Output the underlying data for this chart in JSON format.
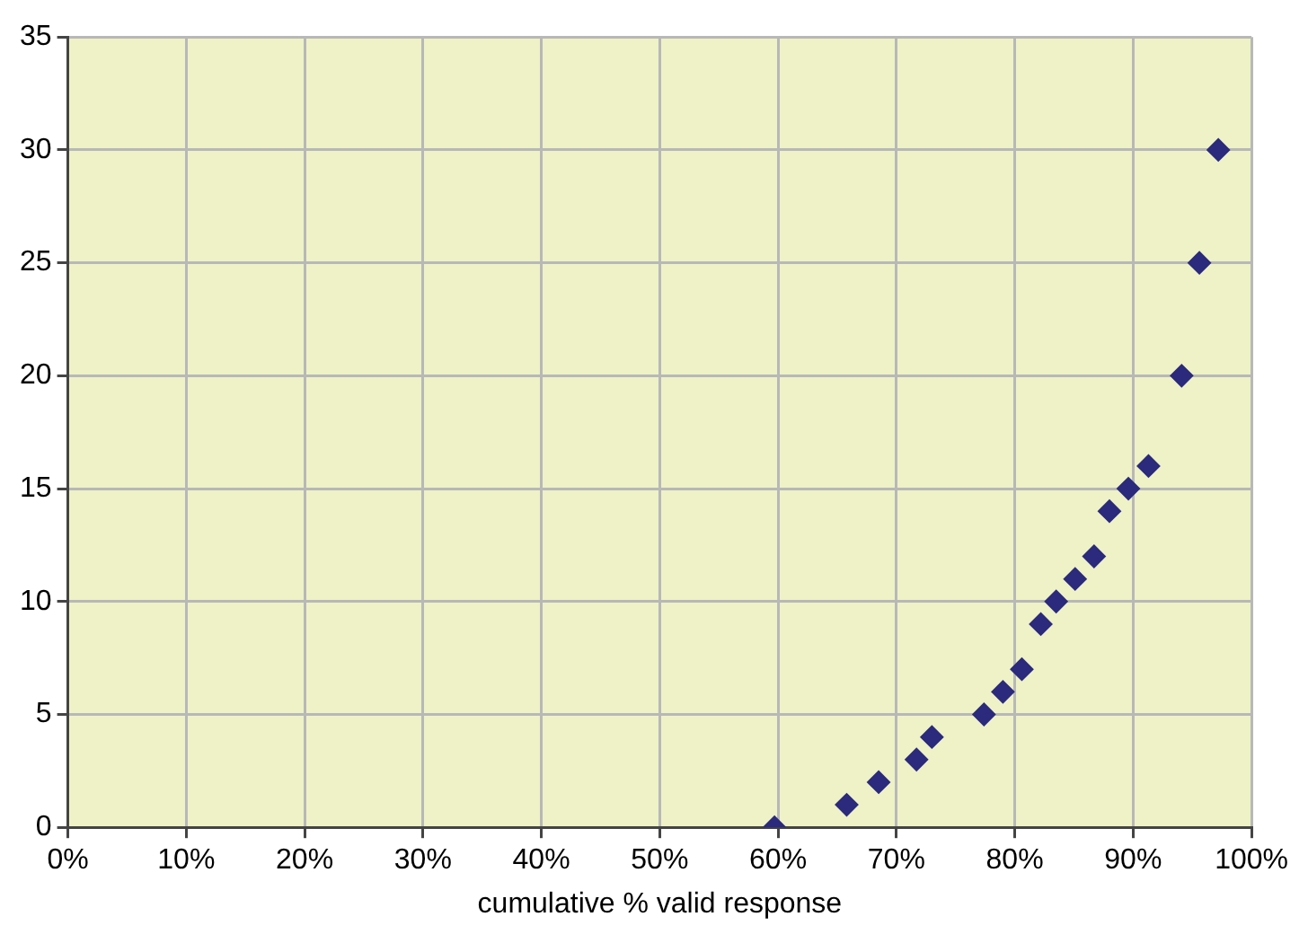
{
  "chart_data": {
    "type": "scatter",
    "xlabel": "cumulative % valid response",
    "series": [
      {
        "color": "#2b2a7c",
        "x": [
          59.7,
          65.8,
          68.5,
          71.7,
          73.0,
          77.4,
          79.0,
          80.6,
          82.2,
          83.5,
          85.1,
          86.7,
          88.0,
          89.6,
          91.3,
          94.1,
          95.6,
          97.2
        ],
        "values": [
          0,
          1,
          2,
          3,
          4,
          5,
          6,
          7,
          9,
          10,
          11,
          12,
          14,
          15,
          16,
          20,
          25,
          30
        ]
      }
    ],
    "xlim": [
      0,
      100
    ],
    "xticks": [
      {
        "value": 0,
        "label": "0%"
      },
      {
        "value": 10,
        "label": "10%"
      },
      {
        "value": 20,
        "label": "20%"
      },
      {
        "value": 30,
        "label": "30%"
      },
      {
        "value": 40,
        "label": "40%"
      },
      {
        "value": 50,
        "label": "50%"
      },
      {
        "value": 60,
        "label": "60%"
      },
      {
        "value": 70,
        "label": "70%"
      },
      {
        "value": 80,
        "label": "80%"
      },
      {
        "value": 90,
        "label": "90%"
      },
      {
        "value": 100,
        "label": "100%"
      }
    ],
    "ylim": [
      0,
      35
    ],
    "yticks": [
      0,
      5,
      10,
      15,
      20,
      25,
      30,
      35
    ],
    "grid": true,
    "marker": "diamond",
    "legend": false
  }
}
